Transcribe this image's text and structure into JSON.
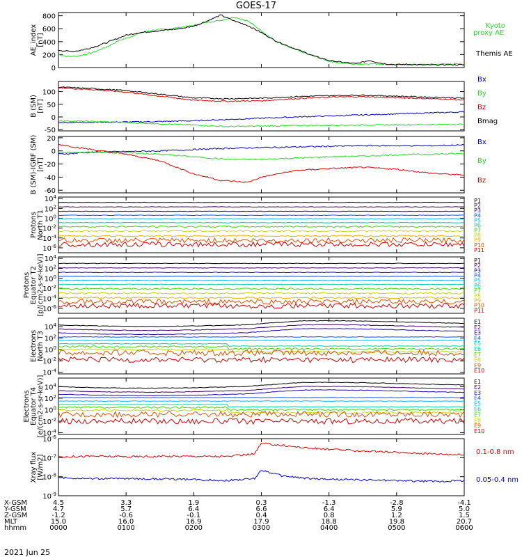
{
  "title": "GOES-17",
  "date_label": "2021 Jun 25",
  "x_ticks": [
    "0000",
    "0100",
    "0200",
    "0300",
    "0400",
    "0500",
    "0600"
  ],
  "ephemeris": {
    "rows": [
      {
        "label": "X-GSM",
        "values": [
          "4.5",
          "3.3",
          "1.9",
          "0.3",
          "-1.3",
          "-2.8",
          "-4.1"
        ]
      },
      {
        "label": "Y-GSM",
        "values": [
          "4.7",
          "5.7",
          "6.4",
          "6.6",
          "6.4",
          "5.9",
          "5.0"
        ]
      },
      {
        "label": "Z-GSM",
        "values": [
          "-1.2",
          "-0.6",
          "-0.1",
          "0.4",
          "0.8",
          "1.2",
          "1.5"
        ]
      },
      {
        "label": "MLT",
        "values": [
          "15.0",
          "16.0",
          "16.9",
          "17.9",
          "18.8",
          "19.8",
          "20.7"
        ]
      },
      {
        "label": "hhmm",
        "values": [
          "0000",
          "0100",
          "0200",
          "0300",
          "0400",
          "0500",
          "0600"
        ]
      }
    ]
  },
  "colors": {
    "black": "#000000",
    "green": "#22dd22",
    "blue": "#0000cc",
    "red": "#dd0000"
  },
  "chart_data": [
    {
      "type": "line",
      "panel": "ae",
      "ylabel": [
        "AE_index",
        "[nT]"
      ],
      "ylim": [
        0,
        850
      ],
      "yticks": [
        "0",
        "200",
        "400",
        "600",
        "800"
      ],
      "ytick_values": [
        0,
        200,
        400,
        600,
        800
      ],
      "series": [
        {
          "name": "Kyoto proxy AE",
          "legend": [
            "Kyoto",
            "proxy AE"
          ],
          "color": "#22dd22",
          "x": [
            0,
            0.15,
            0.3,
            0.5,
            0.7,
            0.9,
            1.0,
            1.2,
            1.4,
            1.6,
            1.8,
            2.0,
            2.2,
            2.4,
            2.6,
            2.8,
            3.0,
            3.2,
            3.4,
            3.6,
            3.8,
            4.0,
            4.2,
            4.4,
            4.6,
            4.8,
            5.0,
            5.2,
            5.4,
            5.6,
            5.8,
            6.0
          ],
          "y": [
            200,
            170,
            180,
            230,
            310,
            420,
            450,
            530,
            580,
            590,
            620,
            650,
            700,
            730,
            780,
            720,
            570,
            410,
            320,
            240,
            170,
            100,
            70,
            50,
            60,
            55,
            40,
            45,
            45,
            50,
            55,
            50
          ]
        },
        {
          "name": "Themis AE",
          "legend": [
            "Themis AE"
          ],
          "color": "#000000",
          "x": [
            0,
            0.15,
            0.3,
            0.5,
            0.7,
            0.9,
            1.0,
            1.2,
            1.4,
            1.6,
            1.8,
            2.0,
            2.2,
            2.4,
            2.6,
            2.8,
            3.0,
            3.2,
            3.4,
            3.6,
            3.8,
            4.0,
            4.2,
            4.4,
            4.6,
            4.8,
            5.0,
            5.2,
            5.4,
            5.6,
            5.8,
            6.0
          ],
          "y": [
            270,
            250,
            260,
            310,
            380,
            460,
            500,
            540,
            560,
            580,
            600,
            640,
            720,
            810,
            720,
            650,
            540,
            420,
            330,
            250,
            170,
            110,
            80,
            60,
            110,
            60,
            45,
            50,
            40,
            40,
            45,
            40
          ]
        }
      ]
    },
    {
      "type": "line",
      "panel": "bsm",
      "ylabel": [
        "B (SM)",
        "[nT]"
      ],
      "ylim": [
        -55,
        140
      ],
      "yticks": [
        "-50",
        "0",
        "50",
        "100"
      ],
      "ytick_values": [
        -50,
        0,
        50,
        100
      ],
      "series": [
        {
          "name": "Bx",
          "legend": [
            "Bx"
          ],
          "color": "#0000cc",
          "x": [
            0,
            0.5,
            1,
            1.5,
            2,
            2.5,
            3,
            3.5,
            4,
            4.5,
            5,
            5.5,
            6
          ],
          "y": [
            -22,
            -21,
            -20,
            -18,
            -15,
            -10,
            -5,
            0,
            4,
            8,
            12,
            16,
            20
          ]
        },
        {
          "name": "By",
          "legend": [
            "By"
          ],
          "color": "#22dd22",
          "x": [
            0,
            0.5,
            1,
            1.5,
            2,
            2.5,
            3,
            3.5,
            4,
            4.5,
            5,
            5.5,
            6
          ],
          "y": [
            -15,
            -18,
            -22,
            -27,
            -32,
            -38,
            -36,
            -34,
            -33,
            -32,
            -31,
            -30,
            -29
          ]
        },
        {
          "name": "Bz",
          "legend": [
            "Bz"
          ],
          "color": "#dd0000",
          "x": [
            0,
            0.5,
            1,
            1.5,
            2,
            2.5,
            3,
            3.5,
            4,
            4.5,
            5,
            5.5,
            6
          ],
          "y": [
            115,
            108,
            98,
            82,
            66,
            62,
            64,
            72,
            78,
            80,
            76,
            72,
            67
          ]
        },
        {
          "name": "Bmag",
          "legend": [
            "Bmag"
          ],
          "color": "#000000",
          "x": [
            0,
            0.5,
            1,
            1.5,
            2,
            2.5,
            3,
            3.5,
            4,
            4.5,
            5,
            5.5,
            6
          ],
          "y": [
            118,
            112,
            104,
            90,
            75,
            72,
            74,
            80,
            84,
            86,
            82,
            78,
            74
          ]
        }
      ]
    },
    {
      "type": "line",
      "panel": "digrf",
      "ylabel": [
        "B (SM)-IGRF (SM)",
        "[nT]"
      ],
      "ylim": [
        -64,
        22
      ],
      "yticks": [
        "-60",
        "-40",
        "-20",
        "0",
        "20"
      ],
      "ytick_values": [
        -60,
        -40,
        -20,
        0,
        20
      ],
      "series": [
        {
          "name": "Bx",
          "legend": [
            "Bx"
          ],
          "color": "#0000cc",
          "x": [
            0,
            0.5,
            1,
            1.5,
            2,
            2.5,
            3,
            3.5,
            4,
            4.5,
            5,
            5.5,
            6
          ],
          "y": [
            -5,
            -2,
            -1,
            0,
            2,
            4,
            5,
            6,
            7,
            8,
            8,
            8,
            9
          ]
        },
        {
          "name": "By",
          "legend": [
            "By"
          ],
          "color": "#22dd22",
          "x": [
            0,
            0.5,
            1,
            1.5,
            2,
            2.5,
            3,
            3.5,
            4,
            4.5,
            5,
            5.5,
            6
          ],
          "y": [
            -3,
            -2,
            -3,
            -5,
            -9,
            -13,
            -13,
            -11,
            -9,
            -8,
            -6,
            -5,
            -4
          ]
        },
        {
          "name": "Bz",
          "legend": [
            "Bz"
          ],
          "color": "#dd0000",
          "x": [
            0,
            0.3,
            0.7,
            1,
            1.5,
            2,
            2.4,
            2.8,
            3,
            3.5,
            4,
            4.5,
            5,
            5.5,
            6
          ],
          "y": [
            10,
            5,
            -1,
            -5,
            -15,
            -35,
            -45,
            -48,
            -40,
            -30,
            -27,
            -25,
            -28,
            -34,
            -37
          ]
        }
      ]
    },
    {
      "type": "line",
      "panel": "protons_t1",
      "log": true,
      "ylabel": [
        "Protons",
        "North T1"
      ],
      "ylim_exp": [
        -7,
        4.3
      ],
      "yticks": [
        "10-6",
        "10-4",
        "10-2",
        "100",
        "102",
        "104"
      ],
      "ytick_exps": [
        -6,
        -4,
        -2,
        0,
        2,
        4
      ],
      "legend": [
        "P1",
        "P2",
        "P3",
        "P4",
        "P5",
        "P6",
        "P7",
        "P8",
        "P9",
        "P10",
        "P11"
      ],
      "legend_colors": [
        "#000000",
        "#3b0066",
        "#1f00b0",
        "#0050ff",
        "#00b4ff",
        "#00d0a0",
        "#3cd800",
        "#c0d800",
        "#f0b000",
        "#e05000",
        "#d00000"
      ],
      "series_exp": [
        3.2,
        2.3,
        1.4,
        0.6,
        -0.1,
        -0.9,
        -1.7,
        -2.6,
        -3.6,
        -4.5,
        -5.3
      ]
    },
    {
      "type": "line",
      "panel": "protons_t2",
      "log": true,
      "ylabel": [
        "Protons",
        "Equator T2",
        "[p/(cm2-s-sr-keV)]"
      ],
      "ylim_exp": [
        -7,
        4.3
      ],
      "yticks": [
        "10-6",
        "10-4",
        "10-2",
        "100",
        "102",
        "104"
      ],
      "ytick_exps": [
        -6,
        -4,
        -2,
        0,
        2,
        4
      ],
      "legend": [
        "P1",
        "P2",
        "P3",
        "P4",
        "P5",
        "P6",
        "P7",
        "P8",
        "P9",
        "P10",
        "P11"
      ],
      "legend_colors": [
        "#000000",
        "#3b0066",
        "#1f00b0",
        "#0050ff",
        "#00b4ff",
        "#00d0a0",
        "#3cd800",
        "#c0d800",
        "#f0b000",
        "#e05000",
        "#d00000"
      ],
      "series_exp": [
        3.0,
        2.1,
        1.2,
        0.4,
        -0.4,
        -1.2,
        -2.1,
        -3.0,
        -3.9,
        -4.7,
        -5.5
      ]
    },
    {
      "type": "line",
      "panel": "electrons_t3",
      "log": true,
      "ylabel": [
        "Electrons",
        "North T3"
      ],
      "ylim_exp": [
        -4.3,
        5.5
      ],
      "yticks": [
        "10-4",
        "10-2",
        "100",
        "102",
        "104"
      ],
      "ytick_exps": [
        -4,
        -2,
        0,
        2,
        4
      ],
      "legend": [
        "E1",
        "E2",
        "E3",
        "E4",
        "E5",
        "E6",
        "E7",
        "E8",
        "E9",
        "E10"
      ],
      "legend_colors": [
        "#000000",
        "#3b0066",
        "#1f00b0",
        "#0050ff",
        "#00b4ff",
        "#00d0a0",
        "#3cd800",
        "#c0d800",
        "#e05000",
        "#d00000"
      ],
      "series_exp": [
        4.3,
        3.6,
        2.9,
        2.2,
        1.6,
        1.0,
        0.5,
        0.0,
        -0.6,
        -1.8
      ]
    },
    {
      "type": "line",
      "panel": "electrons_t4",
      "log": true,
      "ylabel": [
        "Electrons",
        "Equator T4",
        "[e/(cm2-s-sr-keV)]"
      ],
      "ylim_exp": [
        -4.3,
        5.5
      ],
      "yticks": [
        "10-4",
        "10-2",
        "100",
        "102",
        "104"
      ],
      "ytick_exps": [
        -4,
        -2,
        0,
        2,
        4
      ],
      "legend": [
        "E1",
        "E2",
        "E3",
        "E4",
        "E5",
        "E6",
        "E7",
        "E8",
        "E9",
        "E10"
      ],
      "legend_colors": [
        "#000000",
        "#3b0066",
        "#1f00b0",
        "#0050ff",
        "#00b4ff",
        "#00d0a0",
        "#3cd800",
        "#c0d800",
        "#e05000",
        "#d00000"
      ],
      "series_exp": [
        4.0,
        3.3,
        2.7,
        2.1,
        1.5,
        0.9,
        0.4,
        -0.1,
        -0.8,
        -2.0
      ]
    },
    {
      "type": "line",
      "panel": "xray",
      "log": true,
      "ylabel": [
        "Xray flux",
        "[W/m2]"
      ],
      "ylim_exp": [
        -9,
        -6
      ],
      "yticks": [
        "10-9",
        "10-8",
        "10-7",
        "10-6"
      ],
      "ytick_exps": [
        -9,
        -8,
        -7,
        -6
      ],
      "series": [
        {
          "name": "0.1-0.8 nm",
          "legend": [
            "0.1-0.8 nm"
          ],
          "color": "#dd0000",
          "x": [
            0,
            0.5,
            1,
            1.5,
            2,
            2.5,
            2.9,
            3.0,
            3.3,
            3.7,
            4.2,
            4.7,
            5.2,
            5.6,
            6
          ],
          "y": [
            -6.95,
            -6.92,
            -6.95,
            -6.93,
            -6.92,
            -6.94,
            -6.8,
            -6.25,
            -6.35,
            -6.5,
            -6.6,
            -6.68,
            -6.75,
            -6.8,
            -6.85
          ]
        },
        {
          "name": "0.05-0.4 nm",
          "legend": [
            "0.05-0.4 nm"
          ],
          "color": "#0000cc",
          "x": [
            0,
            0.5,
            1,
            1.5,
            2,
            2.5,
            2.9,
            3.0,
            3.3,
            3.7,
            4.2,
            4.7,
            5.2,
            5.6,
            6
          ],
          "y": [
            -8.05,
            -8.1,
            -8.1,
            -8.12,
            -8.15,
            -8.2,
            -8.1,
            -7.65,
            -7.95,
            -8.1,
            -8.15,
            -8.18,
            -8.22,
            -8.25,
            -8.2
          ]
        }
      ]
    }
  ]
}
